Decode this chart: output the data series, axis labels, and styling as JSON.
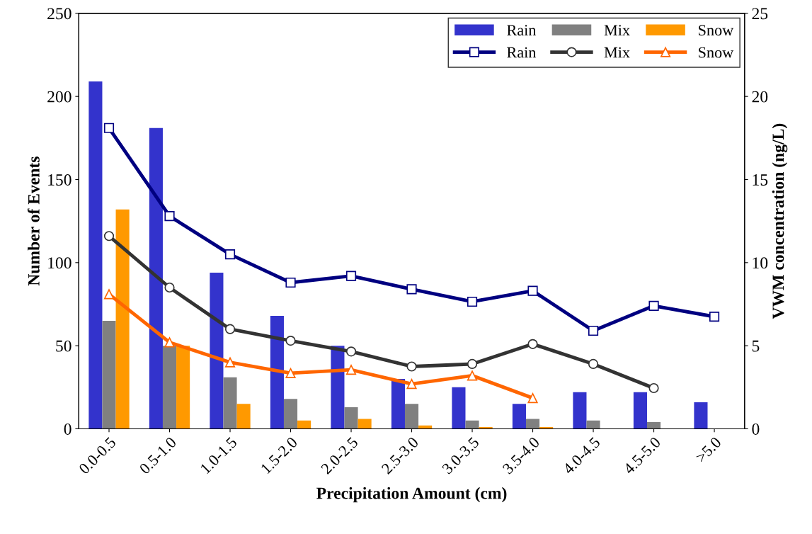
{
  "chart_data": {
    "type": "bar",
    "xlabel": "Precipitation Amount (cm)",
    "ylabel": "Number of Events",
    "y2label": "VWM concentration (ng/L)",
    "categories": [
      "0.0-0.5",
      "0.5-1.0",
      "1.0-1.5",
      "1.5-2.0",
      "2.0-2.5",
      "2.5-3.0",
      "3.0-3.5",
      "3.5-4.0",
      "4.0-4.5",
      "4.5-5.0",
      ">5.0"
    ],
    "series": [
      {
        "name": "Rain",
        "color": "#3333cc",
        "values": [
          209,
          181,
          94,
          68,
          50,
          30,
          25,
          15,
          22,
          22,
          16
        ]
      },
      {
        "name": "Mix",
        "color": "#808080",
        "values": [
          65,
          50,
          31,
          18,
          13,
          15,
          5,
          6,
          5,
          4,
          0
        ]
      },
      {
        "name": "Snow",
        "color": "#ff9900",
        "values": [
          132,
          50,
          15,
          5,
          6,
          2,
          1,
          1,
          0,
          0,
          0
        ]
      },
      {
        "name": "Rain",
        "type": "line",
        "axis": "y2",
        "marker": "square",
        "color": "#000080",
        "values": [
          18.1,
          12.8,
          10.5,
          8.8,
          9.2,
          8.4,
          7.65,
          8.3,
          5.9,
          7.4,
          6.75
        ]
      },
      {
        "name": "Mix",
        "type": "line",
        "axis": "y2",
        "marker": "circle",
        "color": "#333333",
        "values": [
          11.6,
          8.5,
          6.0,
          5.3,
          4.65,
          3.75,
          3.9,
          5.1,
          3.9,
          2.45,
          null
        ]
      },
      {
        "name": "Snow",
        "type": "line",
        "axis": "y2",
        "marker": "triangle",
        "color": "#ff6600",
        "values": [
          8.1,
          5.2,
          4.0,
          3.35,
          3.55,
          2.7,
          3.2,
          1.85,
          null,
          null,
          null
        ]
      }
    ],
    "ylim": [
      0,
      250
    ],
    "yticks": [
      0,
      50,
      100,
      150,
      200,
      250
    ],
    "y2lim": [
      0,
      25
    ],
    "y2ticks": [
      0,
      5,
      10,
      15,
      20,
      25
    ],
    "legend": "top right",
    "grid": false
  }
}
